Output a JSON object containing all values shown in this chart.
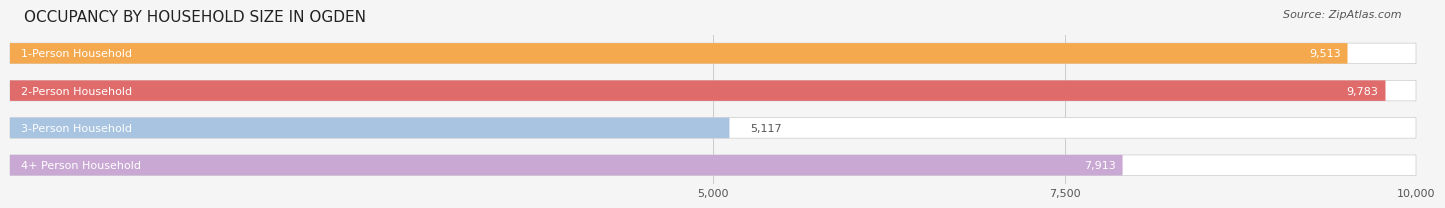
{
  "title": "OCCUPANCY BY HOUSEHOLD SIZE IN OGDEN",
  "source": "Source: ZipAtlas.com",
  "categories": [
    "1-Person Household",
    "2-Person Household",
    "3-Person Household",
    "4+ Person Household"
  ],
  "values": [
    9513,
    9783,
    5117,
    7913
  ],
  "colors": [
    "#f5a94e",
    "#e06b6b",
    "#a8c4e0",
    "#c9a8d4"
  ],
  "xlim": [
    0,
    10000
  ],
  "xticks": [
    5000,
    7500,
    10000
  ],
  "xtick_labels": [
    "5,000",
    "7,500",
    "10,000"
  ],
  "bar_height": 0.55,
  "background_color": "#f5f5f5",
  "bar_background": "#ffffff",
  "title_fontsize": 11,
  "source_fontsize": 8,
  "label_fontsize": 8,
  "value_fontsize": 8
}
